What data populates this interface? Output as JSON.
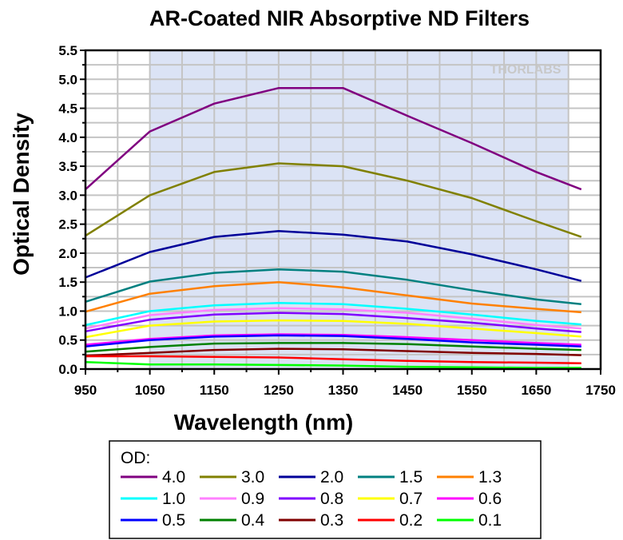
{
  "chart_data": {
    "type": "line",
    "title": "AR-Coated NIR Absorptive ND Filters",
    "xlabel": "Wavelength (nm)",
    "ylabel": "Optical Density",
    "xlim": [
      950,
      1750
    ],
    "ylim": [
      0.0,
      5.5
    ],
    "xticks": [
      "950",
      "1050",
      "1150",
      "1250",
      "1350",
      "1450",
      "1550",
      "1650",
      "1750"
    ],
    "yticks": [
      "0.0",
      "0.5",
      "1.0",
      "1.5",
      "2.0",
      "2.5",
      "3.0",
      "3.5",
      "4.0",
      "4.5",
      "5.0",
      "5.5"
    ],
    "grid": true,
    "shaded_region": [
      1050,
      1700
    ],
    "shaded_color": "#dbe3f5",
    "watermark": "THORLABS",
    "legend_title": "OD:",
    "legend_position": "bottom",
    "x": [
      950,
      1050,
      1150,
      1250,
      1350,
      1450,
      1550,
      1650,
      1720
    ],
    "series": [
      {
        "name": "4.0",
        "color": "#800080",
        "values": [
          3.1,
          4.1,
          4.58,
          4.85,
          4.85,
          4.37,
          3.9,
          3.4,
          3.1
        ]
      },
      {
        "name": "3.0",
        "color": "#808000",
        "values": [
          2.3,
          3.0,
          3.4,
          3.55,
          3.5,
          3.25,
          2.95,
          2.55,
          2.28
        ]
      },
      {
        "name": "2.0",
        "color": "#000099",
        "values": [
          1.58,
          2.02,
          2.28,
          2.38,
          2.32,
          2.2,
          1.98,
          1.72,
          1.52
        ]
      },
      {
        "name": "1.5",
        "color": "#008080",
        "values": [
          1.16,
          1.51,
          1.66,
          1.72,
          1.68,
          1.54,
          1.36,
          1.2,
          1.12
        ]
      },
      {
        "name": "1.3",
        "color": "#ff8000",
        "values": [
          0.99,
          1.3,
          1.43,
          1.5,
          1.41,
          1.27,
          1.13,
          1.04,
          0.98
        ]
      },
      {
        "name": "1.0",
        "color": "#00ffff",
        "values": [
          0.76,
          1.0,
          1.1,
          1.14,
          1.12,
          1.04,
          0.94,
          0.83,
          0.77
        ]
      },
      {
        "name": "0.9",
        "color": "#ff80ff",
        "values": [
          0.7,
          0.93,
          1.02,
          1.05,
          1.03,
          0.97,
          0.87,
          0.76,
          0.7
        ]
      },
      {
        "name": "0.8",
        "color": "#8000ff",
        "values": [
          0.65,
          0.85,
          0.94,
          0.97,
          0.95,
          0.88,
          0.8,
          0.7,
          0.64
        ]
      },
      {
        "name": "0.7",
        "color": "#ffff00",
        "values": [
          0.55,
          0.75,
          0.82,
          0.84,
          0.83,
          0.78,
          0.7,
          0.62,
          0.56
        ]
      },
      {
        "name": "0.6",
        "color": "#ff00ff",
        "values": [
          0.42,
          0.52,
          0.58,
          0.6,
          0.59,
          0.55,
          0.5,
          0.45,
          0.42
        ]
      },
      {
        "name": "0.5",
        "color": "#0000ff",
        "values": [
          0.39,
          0.5,
          0.56,
          0.58,
          0.57,
          0.52,
          0.46,
          0.42,
          0.39
        ]
      },
      {
        "name": "0.4",
        "color": "#008000",
        "values": [
          0.3,
          0.38,
          0.44,
          0.45,
          0.45,
          0.43,
          0.39,
          0.35,
          0.33
        ]
      },
      {
        "name": "0.3",
        "color": "#800000",
        "values": [
          0.23,
          0.28,
          0.33,
          0.35,
          0.34,
          0.31,
          0.28,
          0.26,
          0.24
        ]
      },
      {
        "name": "0.2",
        "color": "#ff0000",
        "values": [
          0.22,
          0.22,
          0.21,
          0.2,
          0.17,
          0.14,
          0.12,
          0.11,
          0.1
        ]
      },
      {
        "name": "0.1",
        "color": "#00ff00",
        "values": [
          0.12,
          0.08,
          0.08,
          0.07,
          0.06,
          0.04,
          0.03,
          0.02,
          0.02
        ]
      }
    ]
  }
}
